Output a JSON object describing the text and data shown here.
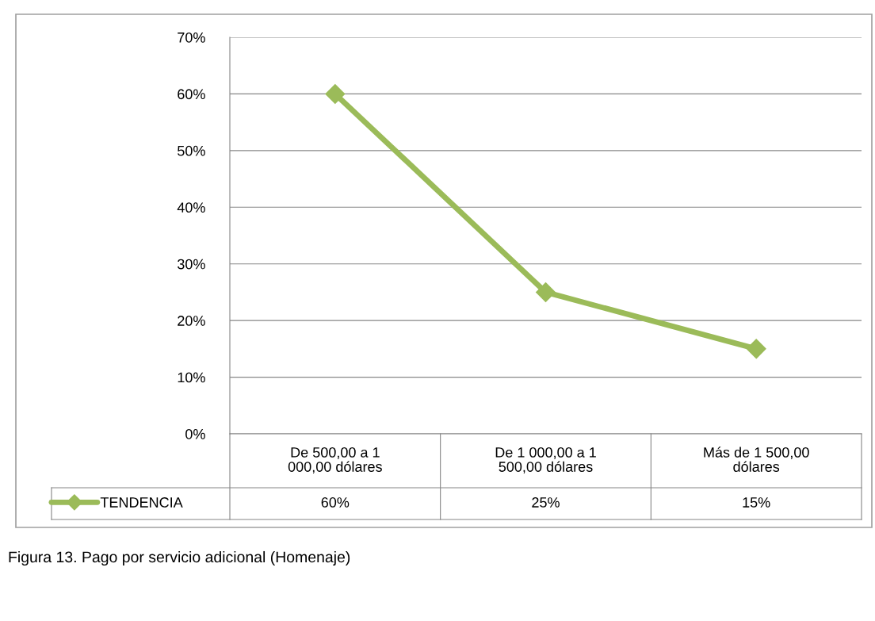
{
  "chart_data": {
    "type": "line",
    "categories": [
      "De 500,00 a 1\n000,00 dólares",
      "De 1 000,00 a 1\n500,00 dólares",
      "Más de 1 500,00\ndólares"
    ],
    "series": [
      {
        "name": "TENDENCIA",
        "color": "#9bbb59",
        "values": [
          60,
          25,
          15
        ],
        "value_labels": [
          "60%",
          "25%",
          "15%"
        ]
      }
    ],
    "ylim": [
      0,
      70
    ],
    "yticks": [
      {
        "value": 0,
        "label": "0%"
      },
      {
        "value": 10,
        "label": "10%"
      },
      {
        "value": 20,
        "label": "20%"
      },
      {
        "value": 30,
        "label": "30%"
      },
      {
        "value": 40,
        "label": "40%"
      },
      {
        "value": 50,
        "label": "50%"
      },
      {
        "value": 60,
        "label": "60%"
      },
      {
        "value": 70,
        "label": "70%"
      }
    ],
    "grid": "y",
    "legend": "bottom left",
    "marker": "diamond",
    "line_style": "solid",
    "annotations": [
      "Figura 13. Pago por servicio adicional (Homenaje)"
    ]
  }
}
